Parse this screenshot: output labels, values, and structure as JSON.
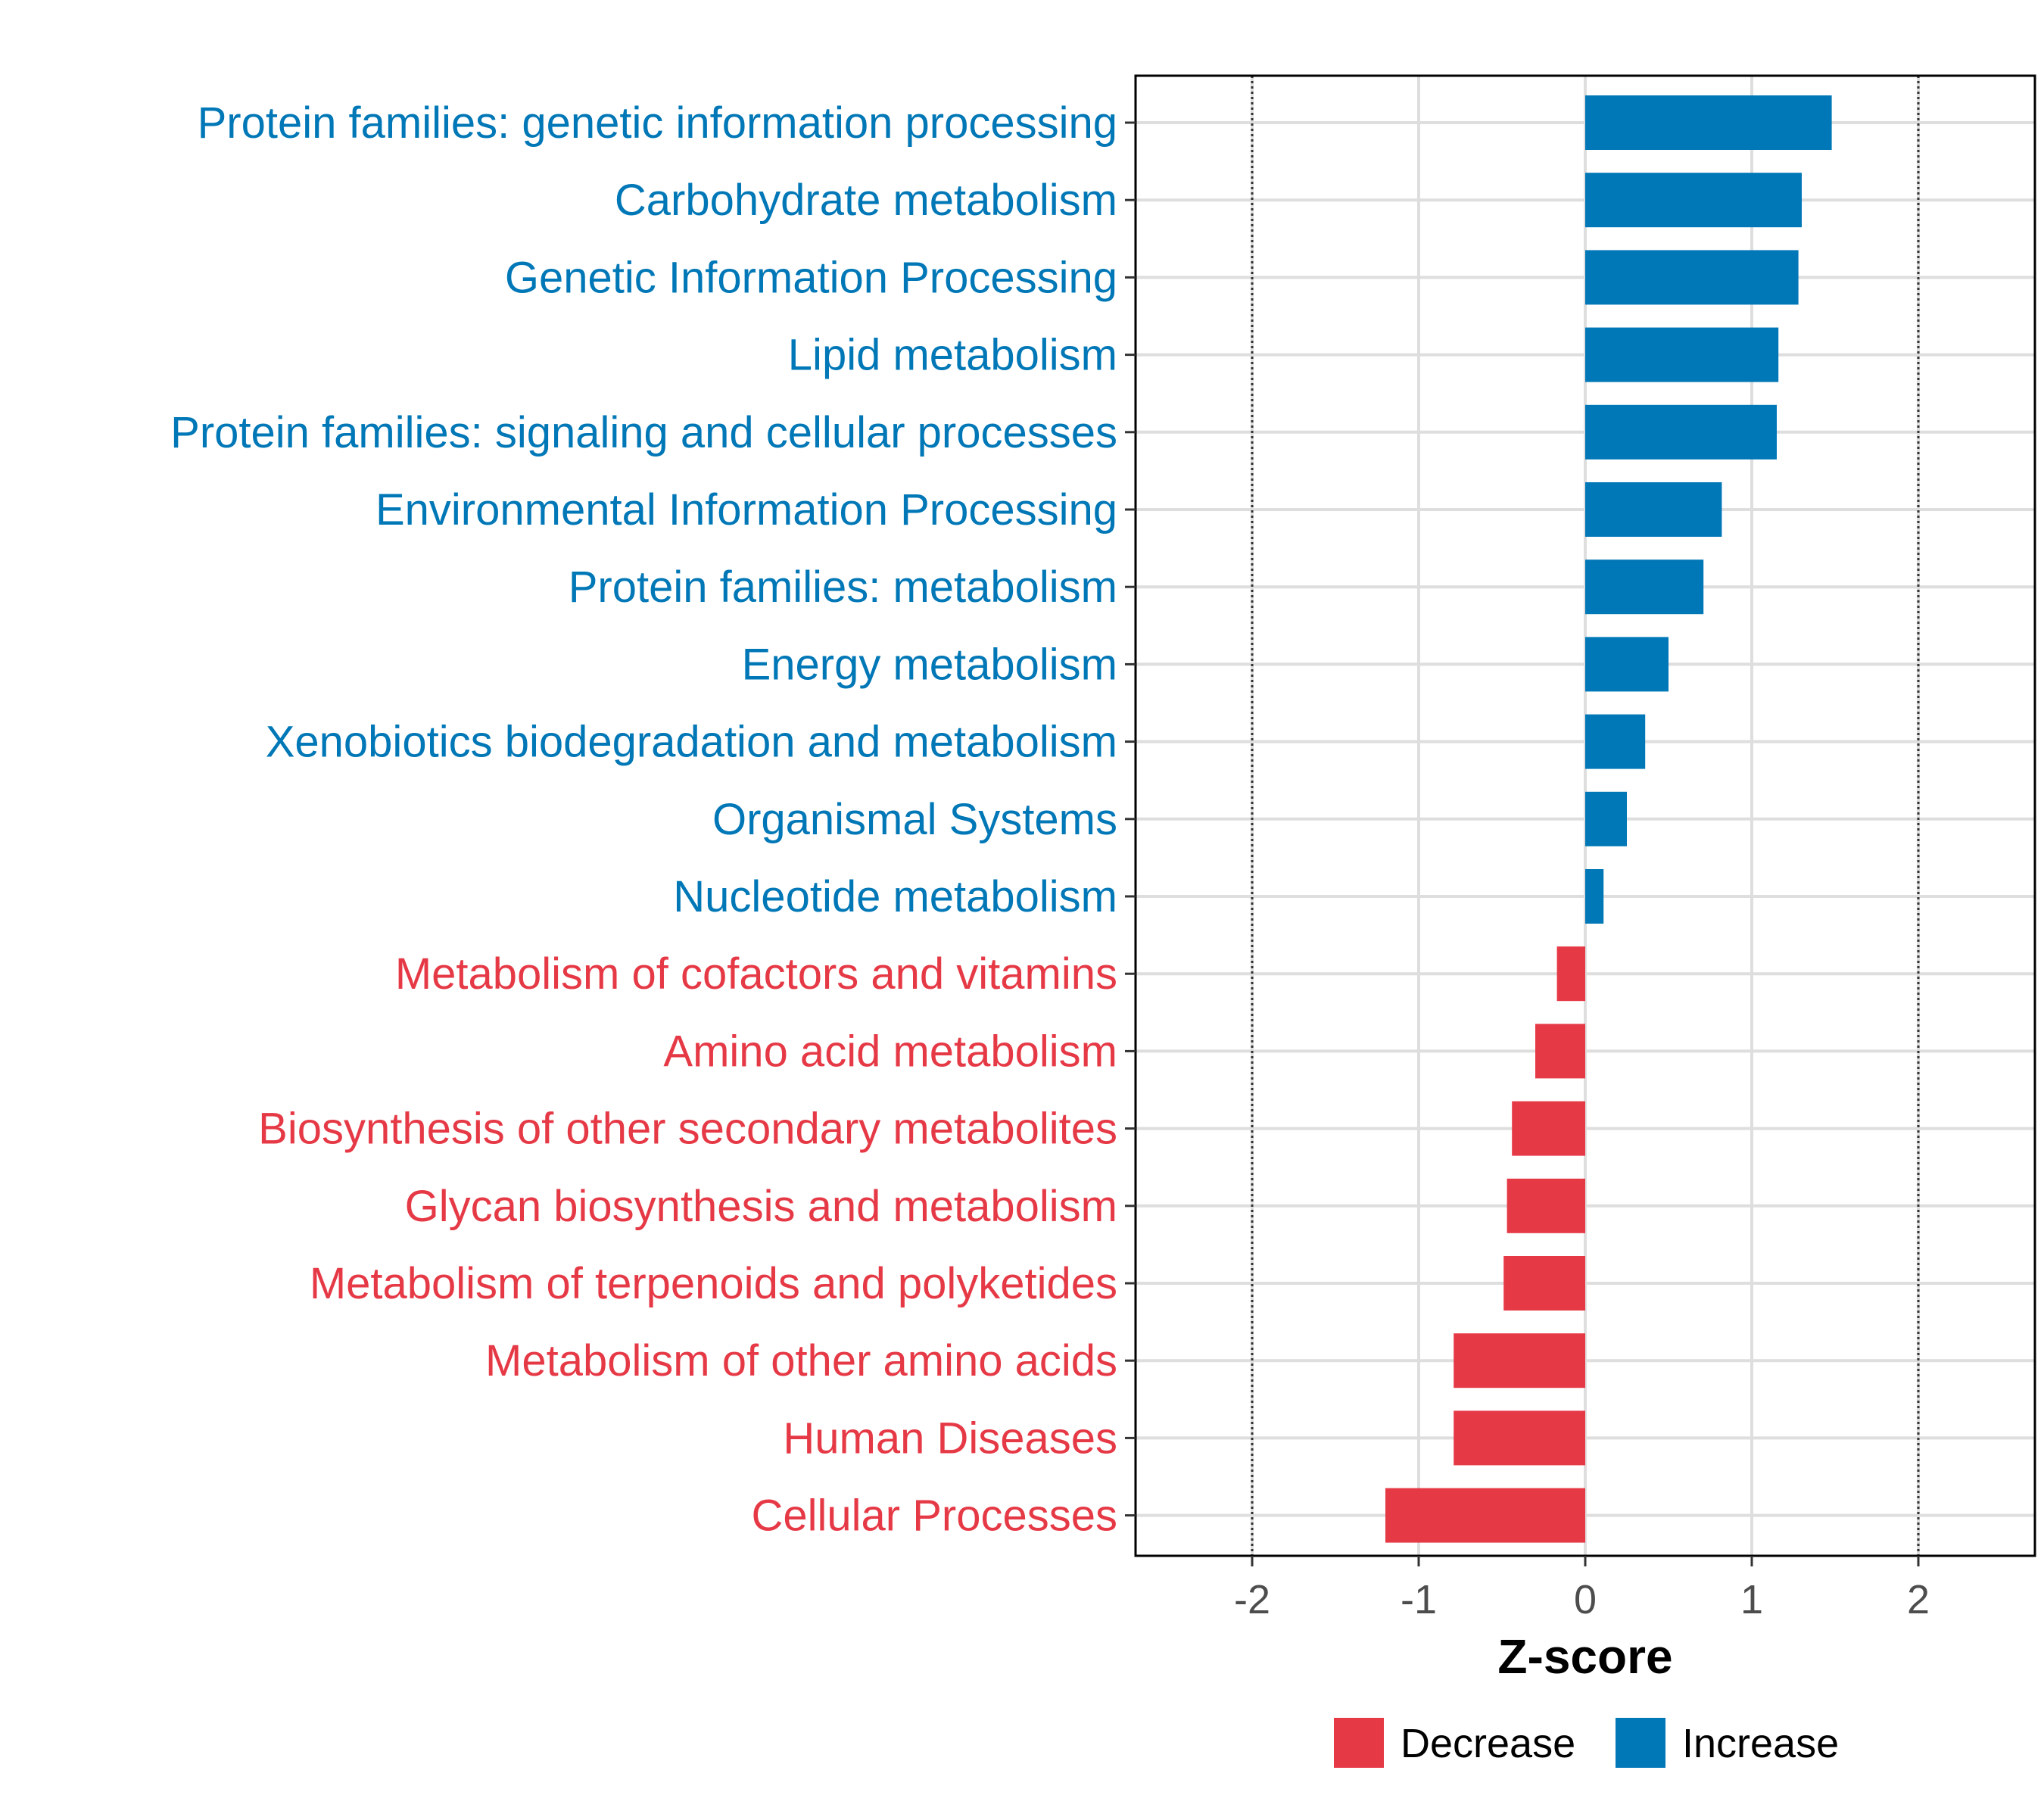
{
  "chart_data": {
    "type": "bar",
    "orientation": "horizontal",
    "title": "",
    "xlabel": "Z-score",
    "ylabel": "",
    "xlim": [
      -2.7,
      2.7
    ],
    "xticks": [
      -2,
      -1,
      0,
      1,
      2
    ],
    "xtick_labels": [
      "-2",
      "-1",
      "0",
      "1",
      "2"
    ],
    "reference_lines": [
      -2,
      2
    ],
    "grid": true,
    "categories": [
      "Protein families: genetic information processing",
      "Carbohydrate metabolism",
      "Genetic Information Processing",
      "Lipid metabolism",
      "Protein families: signaling and cellular processes",
      "Environmental Information Processing",
      "Protein families: metabolism",
      "Energy metabolism",
      "Xenobiotics biodegradation and metabolism",
      "Organismal Systems",
      "Nucleotide metabolism",
      "Metabolism of cofactors and vitamins",
      "Amino acid metabolism",
      "Biosynthesis of other secondary metabolites",
      "Glycan biosynthesis and metabolism",
      "Metabolism of terpenoids and polyketides",
      "Metabolism of other amino acids",
      "Human Diseases",
      "Cellular Processes"
    ],
    "values": [
      1.48,
      1.3,
      1.28,
      1.16,
      1.15,
      0.82,
      0.71,
      0.5,
      0.36,
      0.25,
      0.11,
      -0.17,
      -0.3,
      -0.44,
      -0.47,
      -0.49,
      -0.79,
      -0.79,
      -1.2
    ],
    "groups": [
      "Increase",
      "Increase",
      "Increase",
      "Increase",
      "Increase",
      "Increase",
      "Increase",
      "Increase",
      "Increase",
      "Increase",
      "Increase",
      "Decrease",
      "Decrease",
      "Decrease",
      "Decrease",
      "Decrease",
      "Decrease",
      "Decrease",
      "Decrease"
    ],
    "legend": {
      "placement": "bottom",
      "entries": [
        {
          "label": "Decrease",
          "color": "#E63946"
        },
        {
          "label": "Increase",
          "color": "#0077B6"
        }
      ]
    },
    "colors": {
      "Decrease": "#E63946",
      "Increase": "#0077B6"
    }
  }
}
